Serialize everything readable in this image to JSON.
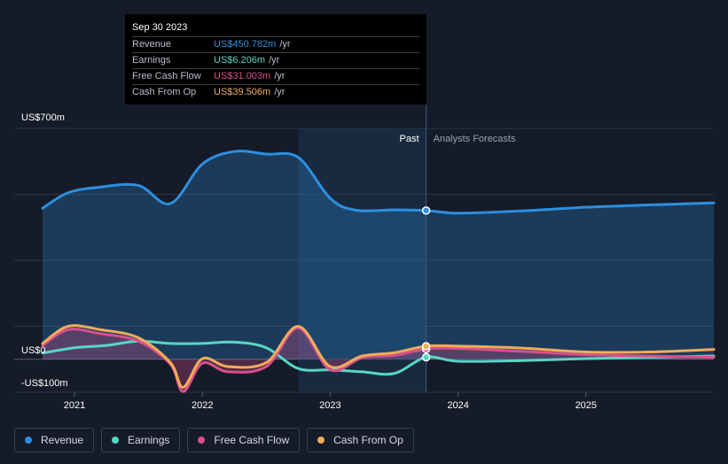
{
  "tooltip": {
    "date": "Sep 30 2023",
    "rows": [
      {
        "label": "Revenue",
        "value": "US$450.782m",
        "unit": "/yr",
        "color": "#2d8fe0"
      },
      {
        "label": "Earnings",
        "value": "US$6.206m",
        "unit": "/yr",
        "color": "#58d6c4"
      },
      {
        "label": "Free Cash Flow",
        "value": "US$31.003m",
        "unit": "/yr",
        "color": "#d9508a"
      },
      {
        "label": "Cash From Op",
        "value": "US$39.506m",
        "unit": "/yr",
        "color": "#f0ad5a"
      }
    ]
  },
  "legend": [
    {
      "label": "Revenue",
      "color": "#2d8fe0"
    },
    {
      "label": "Earnings",
      "color": "#58d6c4"
    },
    {
      "label": "Free Cash Flow",
      "color": "#d9508a"
    },
    {
      "label": "Cash From Op",
      "color": "#f0ad5a"
    }
  ],
  "chart_data": {
    "type": "area",
    "y_axis_labels": {
      "top": "US$700m",
      "zero": "US$0",
      "bottom": "-US$100m"
    },
    "ylim": [
      -100,
      700
    ],
    "xlim": [
      2020.7,
      2026.0
    ],
    "x_ticks": [
      {
        "value": 2021,
        "label": "2021"
      },
      {
        "value": 2022,
        "label": "2022"
      },
      {
        "value": 2023,
        "label": "2023"
      },
      {
        "value": 2024,
        "label": "2024"
      },
      {
        "value": 2025,
        "label": "2025"
      }
    ],
    "past_label": "Past",
    "forecast_label": "Analysts Forecasts",
    "divider_x": 2023.75,
    "highlight_start": 2022.75,
    "grid": true,
    "series": [
      {
        "name": "Revenue",
        "color": "#2d8fe0",
        "area": true,
        "points": [
          [
            2020.75,
            458
          ],
          [
            2020.95,
            505
          ],
          [
            2021.2,
            522
          ],
          [
            2021.5,
            527
          ],
          [
            2021.75,
            472
          ],
          [
            2022.0,
            592
          ],
          [
            2022.25,
            630
          ],
          [
            2022.5,
            622
          ],
          [
            2022.75,
            612
          ],
          [
            2023.0,
            488
          ],
          [
            2023.2,
            452
          ],
          [
            2023.5,
            453
          ],
          [
            2023.75,
            451
          ],
          [
            2024.0,
            443
          ],
          [
            2024.5,
            450
          ],
          [
            2025.0,
            461
          ],
          [
            2025.5,
            468
          ],
          [
            2026.0,
            474
          ]
        ]
      },
      {
        "name": "Earnings",
        "color": "#58d6c4",
        "points": [
          [
            2020.75,
            19
          ],
          [
            2021.0,
            35
          ],
          [
            2021.25,
            42
          ],
          [
            2021.5,
            55
          ],
          [
            2021.75,
            48
          ],
          [
            2022.0,
            48
          ],
          [
            2022.25,
            52
          ],
          [
            2022.5,
            35
          ],
          [
            2022.75,
            -28
          ],
          [
            2023.0,
            -32
          ],
          [
            2023.25,
            -38
          ],
          [
            2023.5,
            -43
          ],
          [
            2023.75,
            6
          ],
          [
            2024.0,
            -6
          ],
          [
            2024.5,
            -4
          ],
          [
            2025.0,
            2
          ],
          [
            2025.5,
            6
          ],
          [
            2026.0,
            10
          ]
        ]
      },
      {
        "name": "Free Cash Flow",
        "color": "#d9508a",
        "area": true,
        "points": [
          [
            2020.75,
            42
          ],
          [
            2020.95,
            90
          ],
          [
            2021.2,
            78
          ],
          [
            2021.5,
            55
          ],
          [
            2021.75,
            -15
          ],
          [
            2021.85,
            -98
          ],
          [
            2022.0,
            -12
          ],
          [
            2022.2,
            -38
          ],
          [
            2022.5,
            -22
          ],
          [
            2022.75,
            95
          ],
          [
            2023.0,
            -32
          ],
          [
            2023.25,
            5
          ],
          [
            2023.5,
            12
          ],
          [
            2023.75,
            31
          ],
          [
            2024.0,
            33
          ],
          [
            2024.5,
            24
          ],
          [
            2025.0,
            14
          ],
          [
            2025.5,
            10
          ],
          [
            2026.0,
            6
          ]
        ]
      },
      {
        "name": "Cash From Op",
        "color": "#f0ad5a",
        "points": [
          [
            2020.75,
            48
          ],
          [
            2020.95,
            100
          ],
          [
            2021.2,
            90
          ],
          [
            2021.5,
            65
          ],
          [
            2021.75,
            -10
          ],
          [
            2021.85,
            -85
          ],
          [
            2022.0,
            2
          ],
          [
            2022.2,
            -22
          ],
          [
            2022.5,
            -10
          ],
          [
            2022.75,
            100
          ],
          [
            2023.0,
            -22
          ],
          [
            2023.25,
            10
          ],
          [
            2023.5,
            20
          ],
          [
            2023.75,
            39.5
          ],
          [
            2024.0,
            40
          ],
          [
            2024.5,
            34
          ],
          [
            2025.0,
            22
          ],
          [
            2025.5,
            22
          ],
          [
            2026.0,
            30
          ]
        ]
      }
    ],
    "markers_at": 2023.75
  }
}
